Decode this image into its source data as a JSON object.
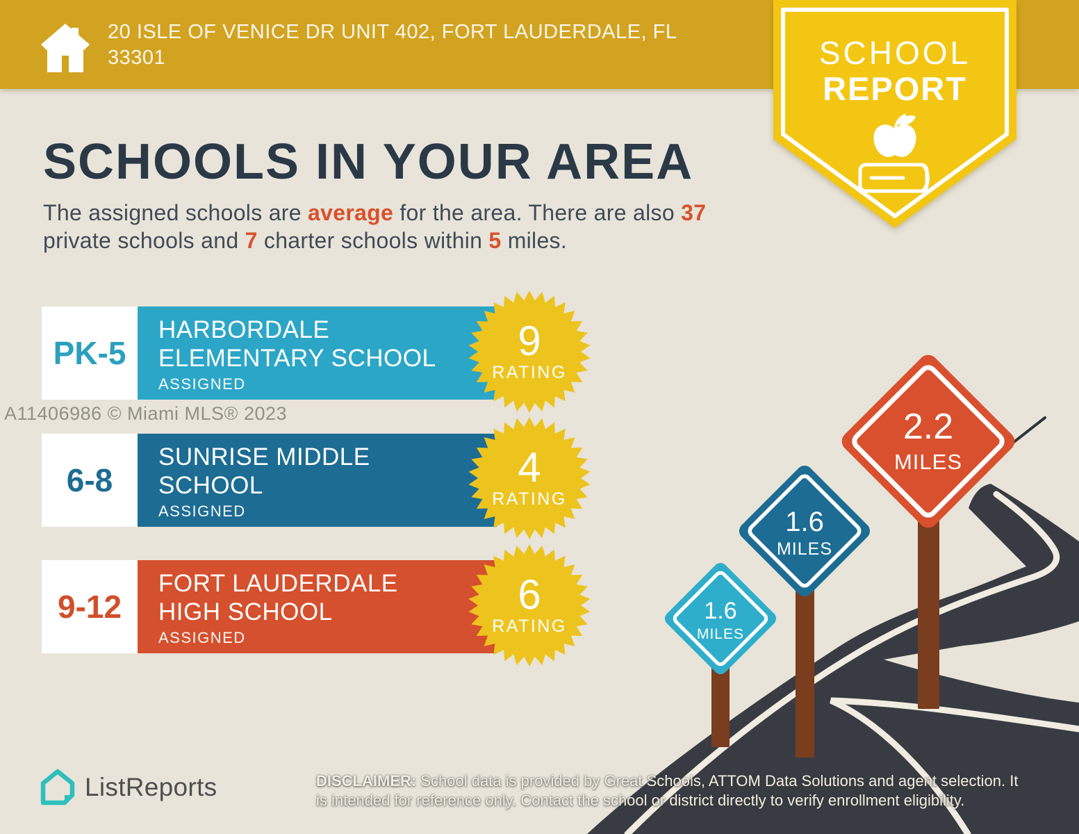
{
  "header": {
    "address_line1": "20 ISLE OF VENICE DR UNIT 402, FORT LAUDERDALE, FL",
    "address_line2": "33301",
    "icon": "home-icon"
  },
  "badge": {
    "line1": "SCHOOL",
    "line2": "REPORT",
    "icons": [
      "apple-icon",
      "book-icon"
    ]
  },
  "title": "SCHOOLS IN YOUR AREA",
  "subtitle": {
    "line1": [
      "The assigned schools are ",
      "average",
      " for the area. There are also ",
      "37"
    ],
    "line2": [
      "private schools and ",
      "7",
      " charter schools within ",
      "5",
      " miles."
    ]
  },
  "watermark": "A11406986 © Miami MLS® 2023",
  "schools": [
    {
      "grades": "PK-5",
      "name_line1": "HARBORDALE",
      "name_line2": "ELEMENTARY SCHOOL",
      "status": "ASSIGNED",
      "rating": "9",
      "rating_label": "RATING",
      "color": "#2CA6C6"
    },
    {
      "grades": "6-8",
      "name_line1": "SUNRISE MIDDLE",
      "name_line2": "SCHOOL",
      "status": "ASSIGNED",
      "rating": "4",
      "rating_label": "RATING",
      "color": "#1D6C93"
    },
    {
      "grades": "9-12",
      "name_line1": "FORT LAUDERDALE",
      "name_line2": "HIGH SCHOOL",
      "status": "ASSIGNED",
      "rating": "6",
      "rating_label": "RATING",
      "color": "#D5502E"
    }
  ],
  "signs": [
    {
      "distance": "1.6",
      "unit": "MILES",
      "color": "#2FAECB"
    },
    {
      "distance": "1.6",
      "unit": "MILES",
      "color": "#1D6C93"
    },
    {
      "distance": "2.2",
      "unit": "MILES",
      "color": "#D9502E"
    }
  ],
  "footer": {
    "brand": "ListReports",
    "logo_icon": "listreports-house-icon",
    "disclaimer": {
      "label": "DISCLAIMER:",
      "line1_rest": " School data is provided by Great Schools, ATTOM Data Solutions and agent selection. It",
      "line2": "is intended for reference only. Contact the school or district directly to verify enrollment eligibility."
    }
  },
  "colors": {
    "background": "#E8E4D9",
    "header_gold": "#D2A321",
    "badge_yellow": "#F2C613",
    "starburst_yellow": "#EDC31D",
    "navy": "#2B3947",
    "orange_accent": "#D9512C",
    "teal": "#2CA6C6",
    "dark_blue": "#1D6C93",
    "orange_red": "#D5502E",
    "road": "#383C42",
    "post_brown": "#7A3D1E",
    "sign_light_blue": "#2FAECB",
    "watermark_gray": "#8F8C84",
    "logo_teal": "#2FBFBC"
  }
}
